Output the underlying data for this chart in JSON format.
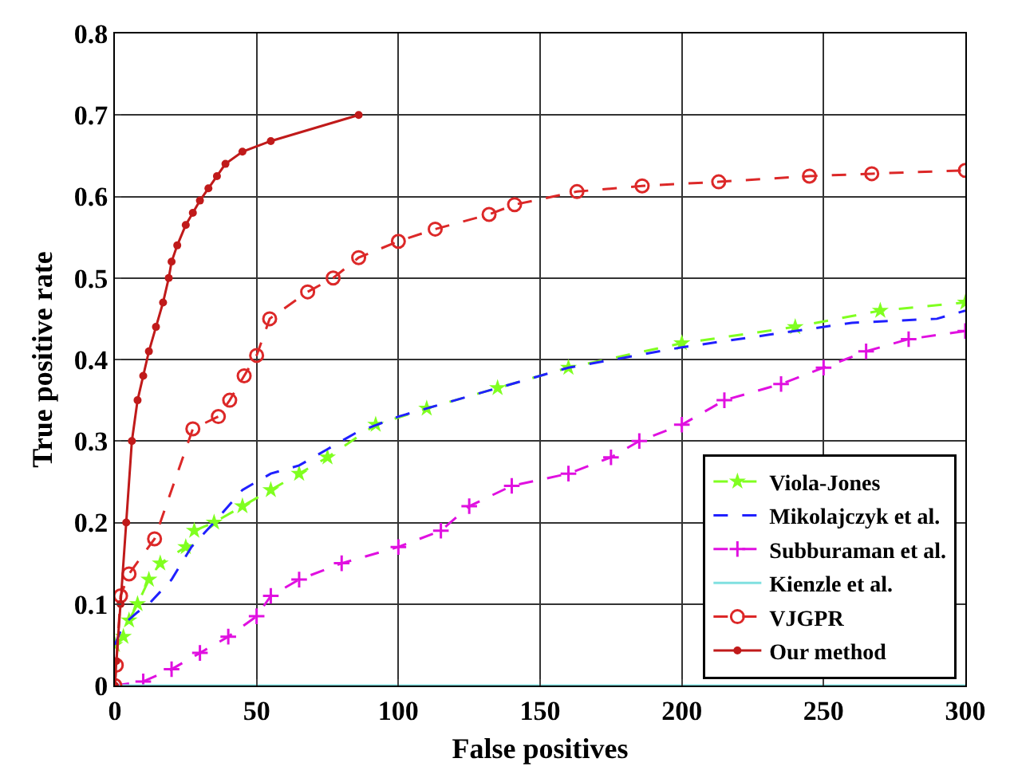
{
  "chart_data": {
    "type": "line",
    "xlabel": "False positives",
    "ylabel": "True positive rate",
    "xlim": [
      0,
      300
    ],
    "ylim": [
      0,
      0.8
    ],
    "xticks": [
      0,
      50,
      100,
      150,
      200,
      250,
      300
    ],
    "yticks": [
      0,
      0.1,
      0.2,
      0.3,
      0.4,
      0.5,
      0.6,
      0.7,
      0.8
    ],
    "grid": true,
    "legend": "bottom right",
    "series": [
      {
        "name": "Viola-Jones",
        "color": "#80ff20",
        "marker": "star",
        "line_style": "dashed",
        "x": [
          0,
          3,
          5,
          8,
          12,
          16,
          25,
          28,
          35,
          45,
          55,
          65,
          75,
          92,
          110,
          135,
          160,
          200,
          240,
          270,
          300
        ],
        "values": [
          0.05,
          0.06,
          0.08,
          0.1,
          0.13,
          0.15,
          0.17,
          0.19,
          0.2,
          0.22,
          0.24,
          0.26,
          0.28,
          0.32,
          0.34,
          0.365,
          0.39,
          0.42,
          0.44,
          0.46,
          0.47
        ]
      },
      {
        "name": "Mikolajczyk et al.",
        "color": "#2020ff",
        "marker": "none",
        "line_style": "dashed",
        "x": [
          0,
          3,
          8,
          12,
          20,
          27,
          35,
          45,
          55,
          65,
          75,
          85,
          100,
          130,
          160,
          200,
          230,
          260,
          290,
          300
        ],
        "values": [
          0.05,
          0.075,
          0.09,
          0.1,
          0.13,
          0.17,
          0.2,
          0.24,
          0.26,
          0.27,
          0.29,
          0.31,
          0.33,
          0.36,
          0.39,
          0.415,
          0.43,
          0.445,
          0.45,
          0.46
        ]
      },
      {
        "name": "Subburaman et al.",
        "color": "#e010e0",
        "marker": "cross",
        "line_style": "dashed",
        "x": [
          0,
          10,
          20,
          30,
          40,
          50,
          55,
          65,
          80,
          100,
          115,
          125,
          140,
          160,
          175,
          185,
          200,
          215,
          235,
          250,
          265,
          280,
          300
        ],
        "values": [
          0,
          0.005,
          0.02,
          0.04,
          0.06,
          0.085,
          0.11,
          0.13,
          0.15,
          0.17,
          0.19,
          0.22,
          0.245,
          0.26,
          0.28,
          0.3,
          0.32,
          0.35,
          0.37,
          0.39,
          0.41,
          0.425,
          0.435
        ]
      },
      {
        "name": "Kienzle et al.",
        "color": "#80e0e0",
        "marker": "none",
        "line_style": "solid",
        "x": [
          0,
          300
        ],
        "values": [
          0,
          0
        ]
      },
      {
        "name": "VJGPR",
        "color": "#dc2828",
        "marker": "circle-open",
        "line_style": "dashed",
        "x": [
          0,
          0.5,
          2,
          5,
          14,
          27.5,
          36.5,
          40.5,
          45.6,
          50,
          54.6,
          68,
          77,
          86,
          100,
          113,
          132,
          141,
          163,
          186,
          213,
          245,
          267,
          300
        ],
        "values": [
          0,
          0.025,
          0.11,
          0.137,
          0.18,
          0.315,
          0.33,
          0.35,
          0.38,
          0.405,
          0.45,
          0.483,
          0.5,
          0.525,
          0.545,
          0.56,
          0.578,
          0.59,
          0.606,
          0.613,
          0.618,
          0.625,
          0.628,
          0.632
        ]
      },
      {
        "name": "Our method",
        "color": "#c01a1a",
        "marker": "circle",
        "line_style": "solid",
        "x": [
          0,
          0.5,
          2,
          4,
          6,
          8,
          10,
          12,
          14.5,
          17,
          19,
          20,
          22,
          25,
          27.5,
          30,
          33,
          36,
          39,
          45,
          55,
          86
        ],
        "values": [
          0,
          0.03,
          0.1,
          0.2,
          0.3,
          0.35,
          0.38,
          0.41,
          0.44,
          0.47,
          0.5,
          0.52,
          0.54,
          0.565,
          0.58,
          0.595,
          0.61,
          0.625,
          0.64,
          0.655,
          0.668,
          0.7
        ]
      }
    ]
  }
}
